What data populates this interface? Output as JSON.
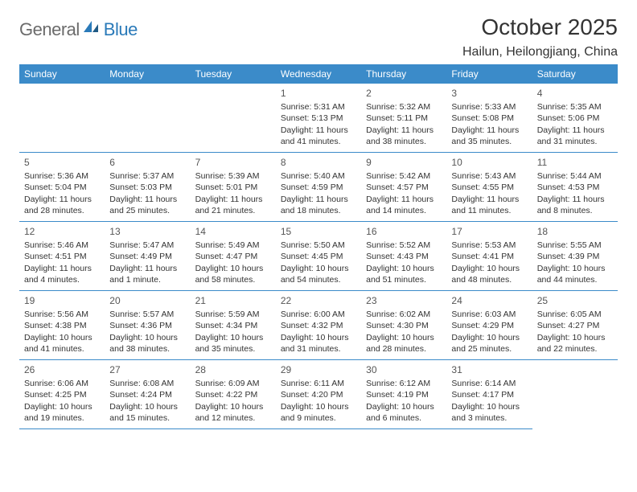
{
  "logo": {
    "text1": "General",
    "text2": "Blue"
  },
  "title": "October 2025",
  "location": "Hailun, Heilongjiang, China",
  "colors": {
    "header_bg": "#3b8bc9",
    "header_text": "#ffffff",
    "cell_border": "#3b8bc9",
    "text": "#333333",
    "logo_gray": "#6b6b6b",
    "logo_blue": "#2a7ab9"
  },
  "layout": {
    "columns": 7,
    "rows": 5,
    "leading_blanks": 3
  },
  "weekdays": [
    "Sunday",
    "Monday",
    "Tuesday",
    "Wednesday",
    "Thursday",
    "Friday",
    "Saturday"
  ],
  "days": [
    {
      "n": 1,
      "sunrise": "5:31 AM",
      "sunset": "5:13 PM",
      "daylight": "11 hours and 41 minutes."
    },
    {
      "n": 2,
      "sunrise": "5:32 AM",
      "sunset": "5:11 PM",
      "daylight": "11 hours and 38 minutes."
    },
    {
      "n": 3,
      "sunrise": "5:33 AM",
      "sunset": "5:08 PM",
      "daylight": "11 hours and 35 minutes."
    },
    {
      "n": 4,
      "sunrise": "5:35 AM",
      "sunset": "5:06 PM",
      "daylight": "11 hours and 31 minutes."
    },
    {
      "n": 5,
      "sunrise": "5:36 AM",
      "sunset": "5:04 PM",
      "daylight": "11 hours and 28 minutes."
    },
    {
      "n": 6,
      "sunrise": "5:37 AM",
      "sunset": "5:03 PM",
      "daylight": "11 hours and 25 minutes."
    },
    {
      "n": 7,
      "sunrise": "5:39 AM",
      "sunset": "5:01 PM",
      "daylight": "11 hours and 21 minutes."
    },
    {
      "n": 8,
      "sunrise": "5:40 AM",
      "sunset": "4:59 PM",
      "daylight": "11 hours and 18 minutes."
    },
    {
      "n": 9,
      "sunrise": "5:42 AM",
      "sunset": "4:57 PM",
      "daylight": "11 hours and 14 minutes."
    },
    {
      "n": 10,
      "sunrise": "5:43 AM",
      "sunset": "4:55 PM",
      "daylight": "11 hours and 11 minutes."
    },
    {
      "n": 11,
      "sunrise": "5:44 AM",
      "sunset": "4:53 PM",
      "daylight": "11 hours and 8 minutes."
    },
    {
      "n": 12,
      "sunrise": "5:46 AM",
      "sunset": "4:51 PM",
      "daylight": "11 hours and 4 minutes."
    },
    {
      "n": 13,
      "sunrise": "5:47 AM",
      "sunset": "4:49 PM",
      "daylight": "11 hours and 1 minute."
    },
    {
      "n": 14,
      "sunrise": "5:49 AM",
      "sunset": "4:47 PM",
      "daylight": "10 hours and 58 minutes."
    },
    {
      "n": 15,
      "sunrise": "5:50 AM",
      "sunset": "4:45 PM",
      "daylight": "10 hours and 54 minutes."
    },
    {
      "n": 16,
      "sunrise": "5:52 AM",
      "sunset": "4:43 PM",
      "daylight": "10 hours and 51 minutes."
    },
    {
      "n": 17,
      "sunrise": "5:53 AM",
      "sunset": "4:41 PM",
      "daylight": "10 hours and 48 minutes."
    },
    {
      "n": 18,
      "sunrise": "5:55 AM",
      "sunset": "4:39 PM",
      "daylight": "10 hours and 44 minutes."
    },
    {
      "n": 19,
      "sunrise": "5:56 AM",
      "sunset": "4:38 PM",
      "daylight": "10 hours and 41 minutes."
    },
    {
      "n": 20,
      "sunrise": "5:57 AM",
      "sunset": "4:36 PM",
      "daylight": "10 hours and 38 minutes."
    },
    {
      "n": 21,
      "sunrise": "5:59 AM",
      "sunset": "4:34 PM",
      "daylight": "10 hours and 35 minutes."
    },
    {
      "n": 22,
      "sunrise": "6:00 AM",
      "sunset": "4:32 PM",
      "daylight": "10 hours and 31 minutes."
    },
    {
      "n": 23,
      "sunrise": "6:02 AM",
      "sunset": "4:30 PM",
      "daylight": "10 hours and 28 minutes."
    },
    {
      "n": 24,
      "sunrise": "6:03 AM",
      "sunset": "4:29 PM",
      "daylight": "10 hours and 25 minutes."
    },
    {
      "n": 25,
      "sunrise": "6:05 AM",
      "sunset": "4:27 PM",
      "daylight": "10 hours and 22 minutes."
    },
    {
      "n": 26,
      "sunrise": "6:06 AM",
      "sunset": "4:25 PM",
      "daylight": "10 hours and 19 minutes."
    },
    {
      "n": 27,
      "sunrise": "6:08 AM",
      "sunset": "4:24 PM",
      "daylight": "10 hours and 15 minutes."
    },
    {
      "n": 28,
      "sunrise": "6:09 AM",
      "sunset": "4:22 PM",
      "daylight": "10 hours and 12 minutes."
    },
    {
      "n": 29,
      "sunrise": "6:11 AM",
      "sunset": "4:20 PM",
      "daylight": "10 hours and 9 minutes."
    },
    {
      "n": 30,
      "sunrise": "6:12 AM",
      "sunset": "4:19 PM",
      "daylight": "10 hours and 6 minutes."
    },
    {
      "n": 31,
      "sunrise": "6:14 AM",
      "sunset": "4:17 PM",
      "daylight": "10 hours and 3 minutes."
    }
  ],
  "labels": {
    "sunrise_prefix": "Sunrise: ",
    "sunset_prefix": "Sunset: ",
    "daylight_prefix": "Daylight: "
  }
}
